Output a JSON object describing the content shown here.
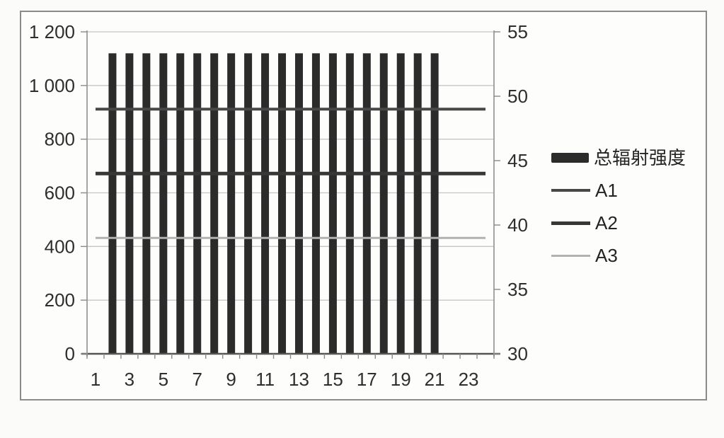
{
  "chart_data": {
    "type": "bar",
    "title": "",
    "categories": [
      1,
      2,
      3,
      4,
      5,
      6,
      7,
      8,
      9,
      10,
      11,
      12,
      13,
      14,
      15,
      16,
      17,
      18,
      19,
      20,
      21,
      22,
      23,
      24
    ],
    "x_axis": {
      "labeled_categories": [
        1,
        3,
        5,
        7,
        9,
        11,
        13,
        15,
        17,
        19,
        21,
        23
      ],
      "tick_labels": [
        "1",
        "3",
        "5",
        "7",
        "9",
        "11",
        "13",
        "15",
        "17",
        "19",
        "21",
        "23"
      ]
    },
    "left_axis": {
      "min": 0,
      "max": 1200,
      "step": 200,
      "tick_labels": [
        "0",
        "200",
        "400",
        "600",
        "800",
        "1 000",
        "1 200"
      ]
    },
    "right_axis": {
      "min": 30,
      "max": 55,
      "step": 5,
      "tick_labels": [
        "30",
        "35",
        "40",
        "45",
        "50",
        "55"
      ]
    },
    "grid": "horizontal",
    "legend_position": "right",
    "series": [
      {
        "name": "总辐射强度",
        "type": "bar",
        "axis": "left",
        "color": "#2b2b2b",
        "values": [
          null,
          1120,
          1120,
          1120,
          1120,
          1120,
          1120,
          1120,
          1120,
          1120,
          1120,
          1120,
          1120,
          1120,
          1120,
          1120,
          1120,
          1120,
          1120,
          1120,
          1120,
          null,
          null,
          null
        ]
      },
      {
        "name": "A1",
        "type": "line",
        "axis": "right",
        "color": "#484848",
        "thickness": 4,
        "values": [
          49,
          49,
          49,
          49,
          49,
          49,
          49,
          49,
          49,
          49,
          49,
          49,
          49,
          49,
          49,
          49,
          49,
          49,
          49,
          49,
          49,
          49,
          49,
          49
        ]
      },
      {
        "name": "A2",
        "type": "line",
        "axis": "right",
        "color": "#373737",
        "thickness": 5,
        "values": [
          44,
          44,
          44,
          44,
          44,
          44,
          44,
          44,
          44,
          44,
          44,
          44,
          44,
          44,
          44,
          44,
          44,
          44,
          44,
          44,
          44,
          44,
          44,
          44
        ]
      },
      {
        "name": "A3",
        "type": "line",
        "axis": "right",
        "color": "#b2b2b2",
        "thickness": 3,
        "values": [
          39,
          39,
          39,
          39,
          39,
          39,
          39,
          39,
          39,
          39,
          39,
          39,
          39,
          39,
          39,
          39,
          39,
          39,
          39,
          39,
          39,
          39,
          39,
          39
        ]
      }
    ]
  }
}
